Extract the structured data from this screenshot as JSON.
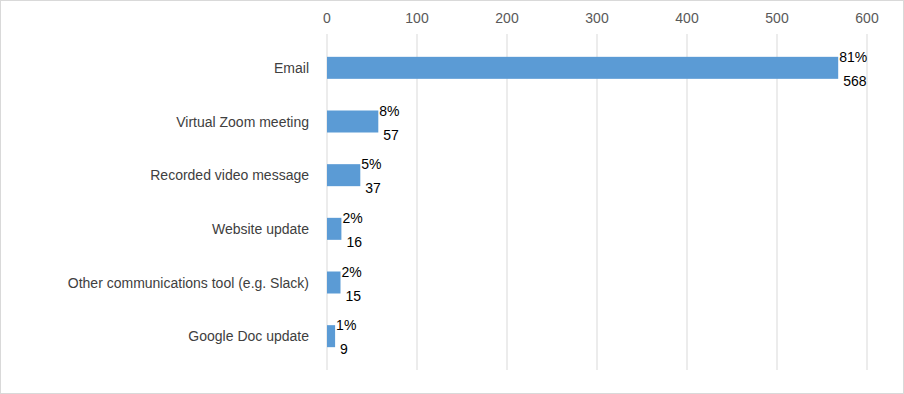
{
  "chart_data": {
    "type": "bar",
    "orientation": "horizontal",
    "categories": [
      "Email",
      "Virtual Zoom meeting",
      "Recorded video message",
      "Website update",
      "Other communications tool (e.g. Slack)",
      "Google Doc update"
    ],
    "values": [
      568,
      57,
      37,
      16,
      15,
      9
    ],
    "percent_labels": [
      "81%",
      "8%",
      "5%",
      "2%",
      "2%",
      "1%"
    ],
    "color": "#5b9bd5",
    "xlim": [
      0,
      600
    ],
    "xticks": [
      0,
      100,
      200,
      300,
      400,
      500,
      600
    ],
    "grid": true,
    "data_labels": true
  }
}
